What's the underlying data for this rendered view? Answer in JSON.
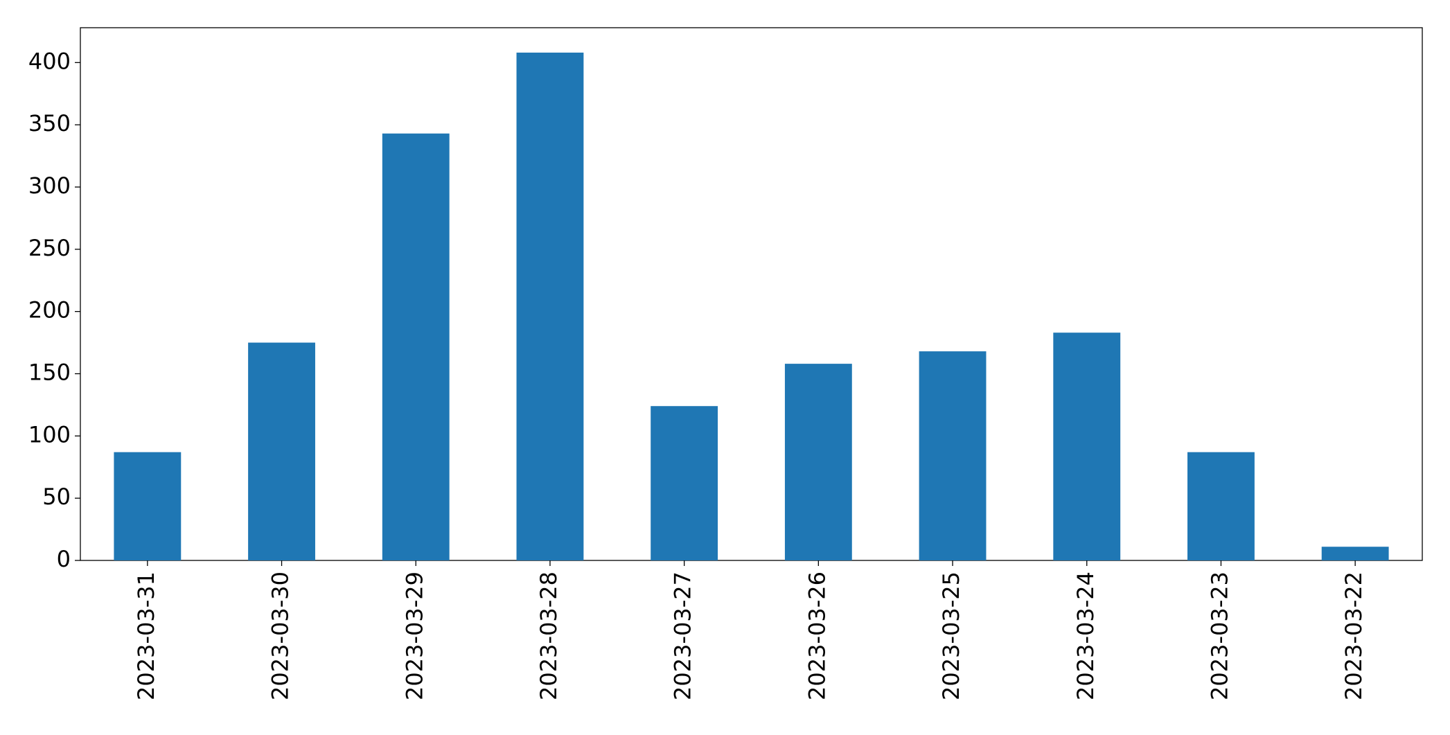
{
  "chart_data": {
    "type": "bar",
    "categories": [
      "2023-03-31",
      "2023-03-30",
      "2023-03-29",
      "2023-03-28",
      "2023-03-27",
      "2023-03-26",
      "2023-03-25",
      "2023-03-24",
      "2023-03-23",
      "2023-03-22"
    ],
    "values": [
      87,
      175,
      343,
      408,
      124,
      158,
      168,
      183,
      87,
      11
    ],
    "color": "#1f77b4",
    "ylim": [
      0,
      428
    ],
    "yticks": [
      0,
      50,
      100,
      150,
      200,
      250,
      300,
      350,
      400
    ],
    "grid": false
  }
}
